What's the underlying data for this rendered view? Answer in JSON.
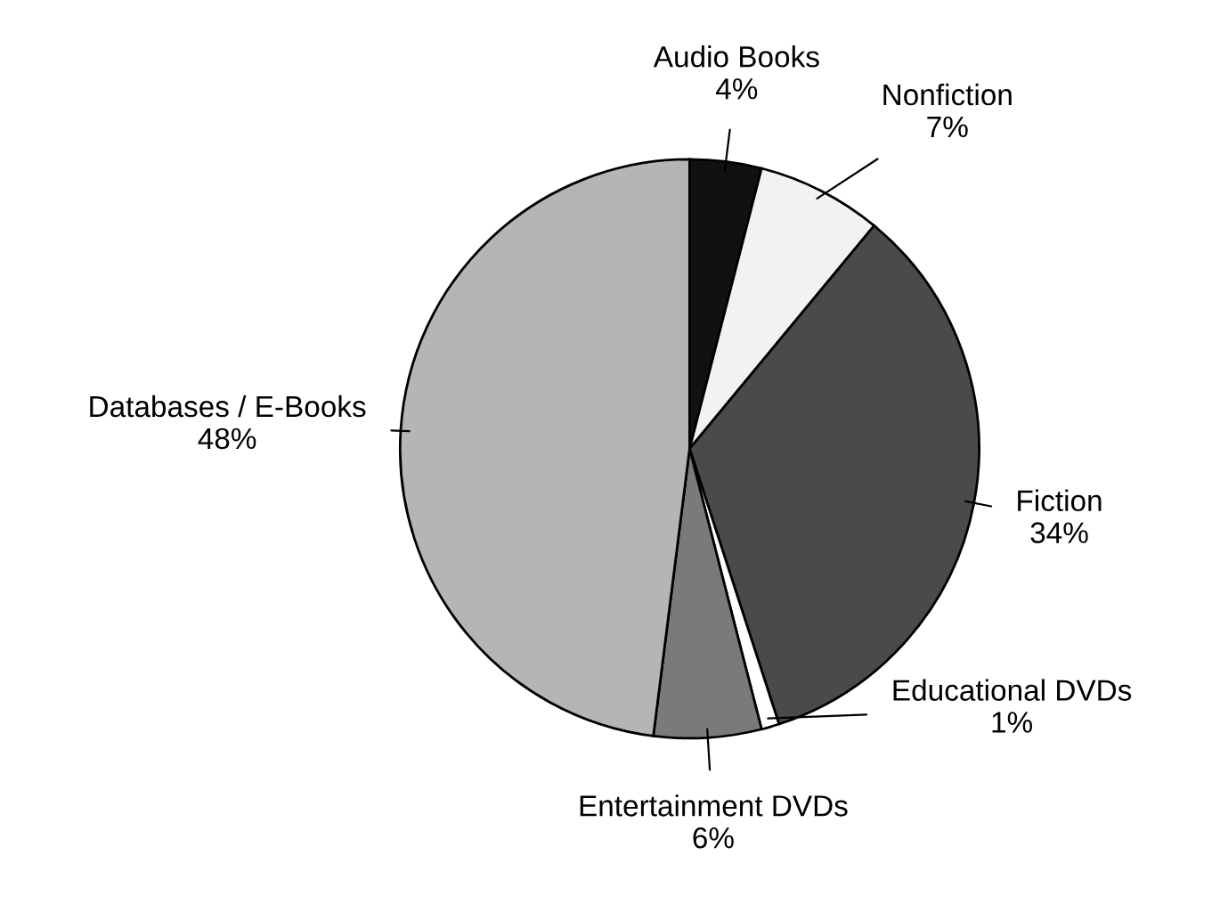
{
  "chart_data": {
    "type": "pie",
    "categories": [
      "Audio Books",
      "Nonfiction",
      "Fiction",
      "Educational DVDs",
      "Entertainment DVDs",
      "Databases / E-Books"
    ],
    "values": [
      4,
      7,
      34,
      1,
      6,
      48
    ],
    "colors": [
      "#111111",
      "#f2f2f2",
      "#4a4a4a",
      "#ffffff",
      "#7a7a7a",
      "#b5b5b5"
    ],
    "value_labels": [
      "4%",
      "7%",
      "34%",
      "1%",
      "6%",
      "48%"
    ]
  }
}
